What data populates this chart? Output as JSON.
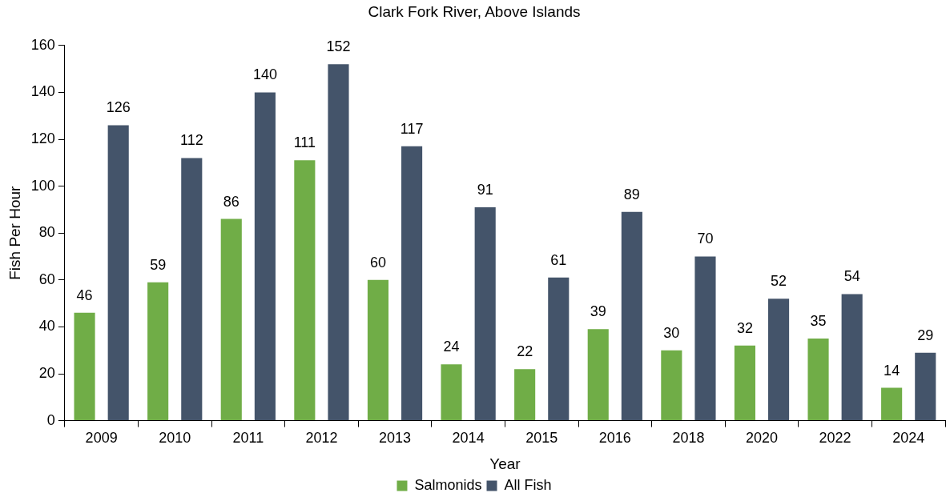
{
  "chart_data": {
    "type": "bar",
    "title": "Clark Fork River, Above Islands",
    "xlabel": "Year",
    "ylabel": "Fish Per Hour",
    "categories": [
      "2009",
      "2010",
      "2011",
      "2012",
      "2013",
      "2014",
      "2015",
      "2016",
      "2018",
      "2020",
      "2022",
      "2024"
    ],
    "series": [
      {
        "name": "Salmonids",
        "color": "#70ad47",
        "values": [
          46,
          59,
          86,
          111,
          60,
          24,
          22,
          39,
          30,
          32,
          35,
          14
        ]
      },
      {
        "name": "All Fish",
        "color": "#44546a",
        "values": [
          126,
          112,
          140,
          152,
          117,
          91,
          61,
          89,
          70,
          52,
          54,
          29
        ]
      }
    ],
    "ylim": [
      0,
      160
    ],
    "yticks": [
      0,
      20,
      40,
      60,
      80,
      100,
      120,
      140,
      160
    ],
    "grid": false,
    "legend": "bottom",
    "data_labels": true
  }
}
